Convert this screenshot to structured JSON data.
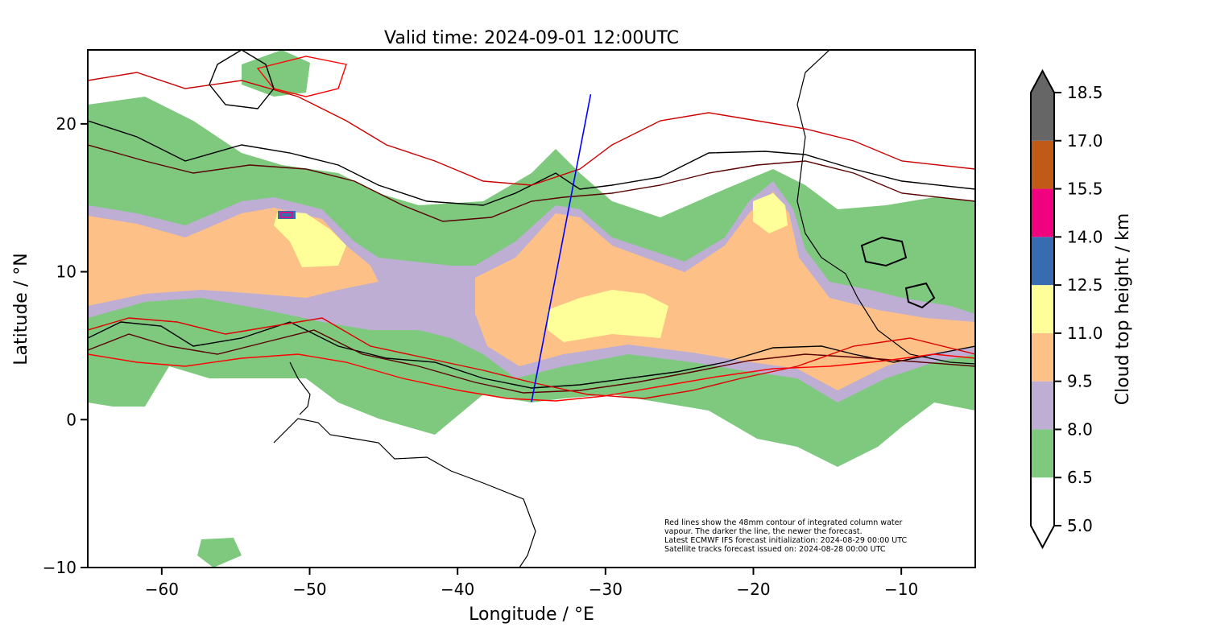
{
  "title": "Valid time: 2024-09-01 12:00UTC",
  "chart_data": {
    "type": "heatmap",
    "title": "Valid time: 2024-09-01 12:00UTC",
    "xlabel": "Longitude / °E",
    "ylabel": "Latitude / °N",
    "xlim": [
      -65,
      -5
    ],
    "ylim": [
      -10,
      25
    ],
    "x_ticks": [
      -60,
      -50,
      -40,
      -30,
      -20,
      -10
    ],
    "x_tick_labels": [
      "−60",
      "−50",
      "−40",
      "−30",
      "−20",
      "−10"
    ],
    "y_ticks": [
      -10,
      0,
      10,
      20
    ],
    "y_tick_labels": [
      "−10",
      "0",
      "10",
      "20"
    ],
    "grid": false,
    "colorbar": {
      "label": "Cloud top height / km",
      "levels": [
        5.0,
        6.5,
        8.0,
        9.5,
        11.0,
        12.5,
        14.0,
        15.5,
        17.0,
        18.5
      ],
      "level_labels": [
        "5.0",
        "6.5",
        "8.0",
        "9.5",
        "11.0",
        "12.5",
        "14.0",
        "15.5",
        "17.0",
        "18.5"
      ],
      "colors": [
        "#ffffff",
        "#7fc97f",
        "#beaed4",
        "#fdc086",
        "#ffff99",
        "#386cb0",
        "#f0027f",
        "#bf5b17",
        "#666666"
      ],
      "extend": "both"
    },
    "satellite_track": {
      "color": "#0000ff",
      "start": [
        -35,
        1.2
      ],
      "end": [
        -31,
        22
      ]
    },
    "annotation_lines": [
      "Red lines show the 48mm contour of integrated column water",
      "vapour. The darker the line, the newer the forecast.",
      "Latest ECMWF IFS forecast initialization: 2024-08-29 00:00 UTC",
      "Satellite tracks forecast issued on: 2024-08-28 00:00 UTC"
    ],
    "contour_colors": [
      "#000000",
      "#3a0000",
      "#8a0000",
      "#cc0000",
      "#ff0000"
    ]
  }
}
